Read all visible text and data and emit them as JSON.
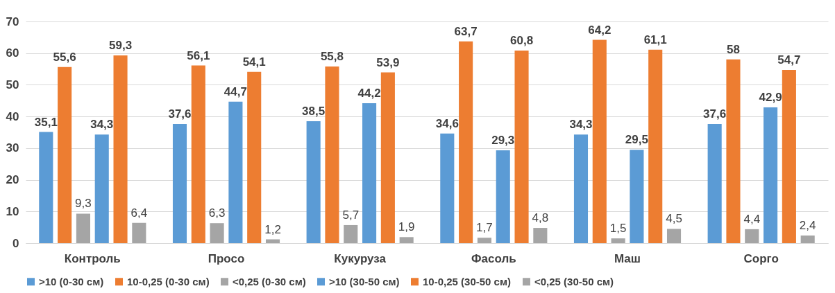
{
  "chart_data": {
    "type": "bar",
    "categories": [
      "Контроль",
      "Просо",
      "Кукуруза",
      "Фасоль",
      "Маш",
      "Сорго"
    ],
    "series": [
      {
        "name": ">10 (0-30 см)",
        "color": "#5b9bd5",
        "values": [
          35.1,
          37.6,
          38.5,
          34.6,
          34.3,
          37.6
        ],
        "value_labels": [
          "35,1",
          "37,6",
          "38,5",
          "34,6",
          "34,3",
          "37,6"
        ]
      },
      {
        "name": "10-0,25 (0-30 см)",
        "color": "#ed7d31",
        "values": [
          55.6,
          56.1,
          55.8,
          63.7,
          64.2,
          58
        ],
        "value_labels": [
          "55,6",
          "56,1",
          "55,8",
          "63,7",
          "64,2",
          "58"
        ]
      },
      {
        "name": "<0,25 (0-30 см)",
        "color": "#a5a5a5",
        "values": [
          9.3,
          6.3,
          5.7,
          1.7,
          1.5,
          4.4
        ],
        "value_labels": [
          "9,3",
          "6,3",
          "5,7",
          "1,7",
          "1,5",
          "4,4"
        ]
      },
      {
        "name": ">10 (30-50 см)",
        "color": "#5b9bd5",
        "values": [
          34.3,
          44.7,
          44.2,
          29.3,
          29.5,
          42.9
        ],
        "value_labels": [
          "34,3",
          "44,7",
          "44,2",
          "29,3",
          "29,5",
          "42,9"
        ]
      },
      {
        "name": "10-0,25 (30-50 см)",
        "color": "#ed7d31",
        "values": [
          59.3,
          54.1,
          53.9,
          60.8,
          61.1,
          54.7
        ],
        "value_labels": [
          "59,3",
          "54,1",
          "53,9",
          "60,8",
          "61,1",
          "54,7"
        ]
      },
      {
        "name": "<0,25 (30-50 см)",
        "color": "#a5a5a5",
        "values": [
          6.4,
          1.2,
          1.9,
          4.8,
          4.5,
          2.4
        ],
        "value_labels": [
          "6,4",
          "1,2",
          "1,9",
          "4,8",
          "4,5",
          "2,4"
        ]
      }
    ],
    "ylim": [
      0,
      70
    ],
    "yticks": [
      0,
      10,
      20,
      30,
      40,
      50,
      60,
      70
    ],
    "grid": "y",
    "legend": "bottom"
  }
}
